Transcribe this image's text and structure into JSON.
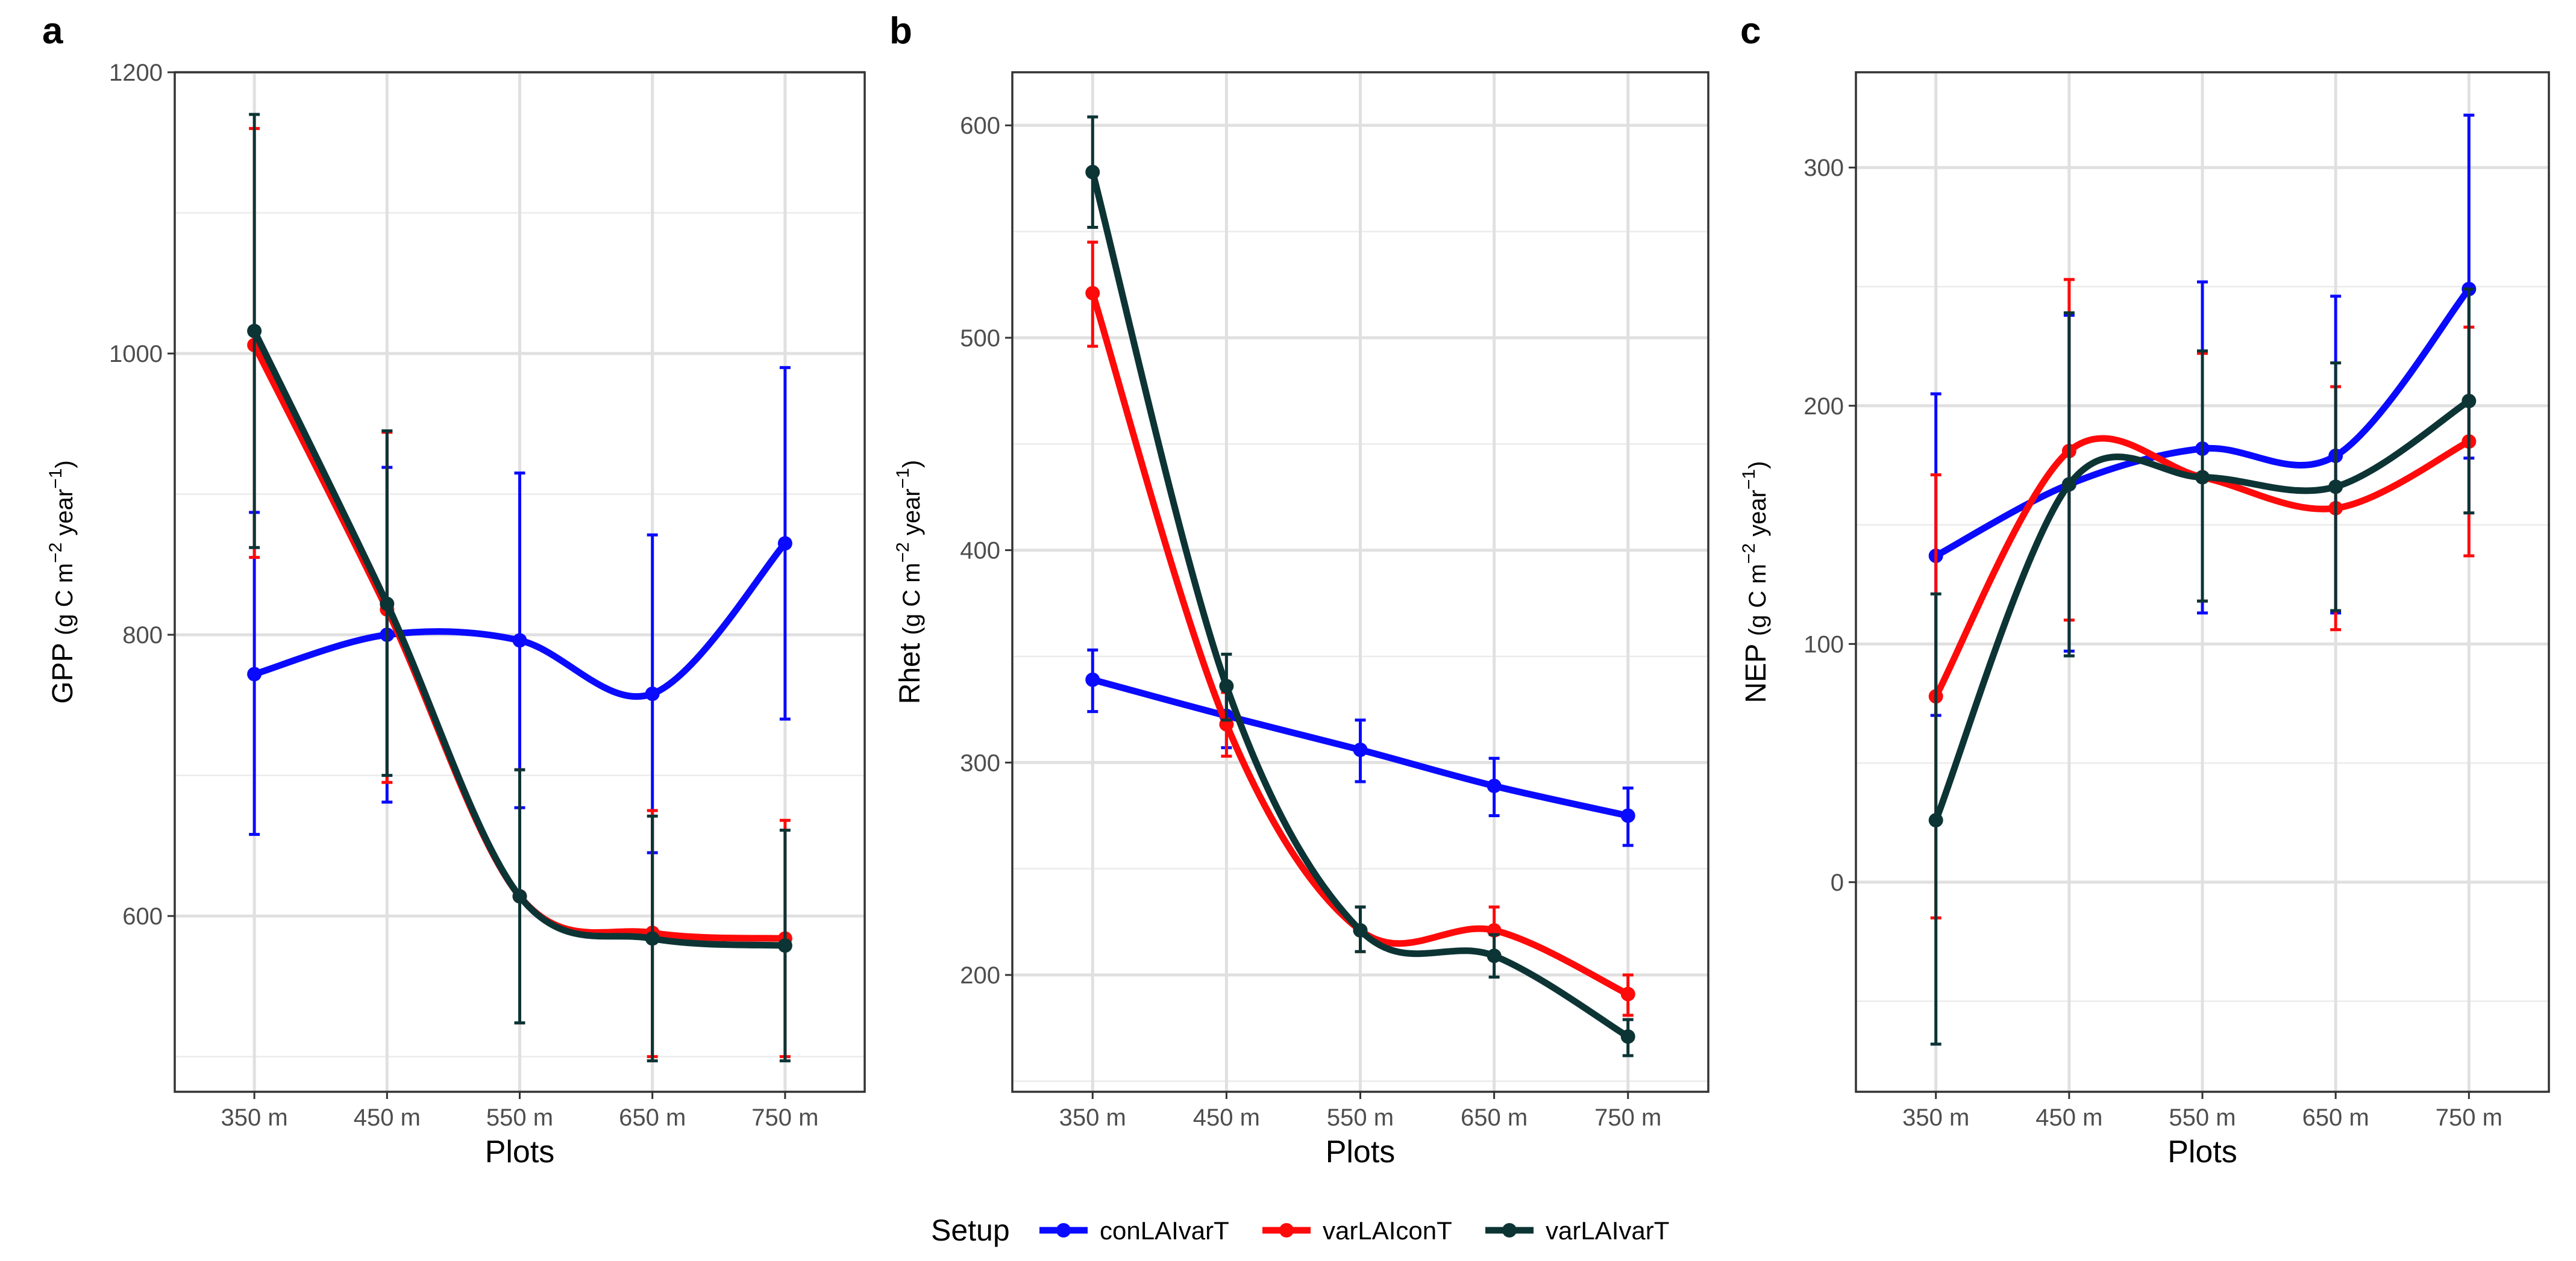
{
  "figure": {
    "x_axis_label": "Plots",
    "legend_title": "Setup"
  },
  "series_styles": [
    {
      "name": "conLAIvarT",
      "color": "#0a0aff"
    },
    {
      "name": "varLAIconT",
      "color": "#ff0a0a"
    },
    {
      "name": "varLAIvarT",
      "color": "#0d3435"
    }
  ],
  "chart_data": [
    {
      "type": "line",
      "panel_label": "a",
      "y_label_main": "GPP",
      "y_unit_prefix": "(g C m",
      "y_unit_exp1": "−2",
      "y_unit_mid": " year",
      "y_unit_exp2": "−1",
      "y_unit_suffix": ")",
      "categories": [
        "350 m",
        "450 m",
        "550 m",
        "650 m",
        "750 m"
      ],
      "ylim": [
        475,
        1200
      ],
      "yticks": [
        600,
        800,
        1000,
        1200
      ],
      "yminor": [
        500,
        700,
        900,
        1100
      ],
      "series": [
        {
          "name": "conLAIvarT",
          "values": [
            772,
            800,
            796,
            758,
            865
          ],
          "err_low": [
            658,
            681,
            677,
            645,
            740
          ],
          "err_high": [
            887,
            919,
            915,
            871,
            990
          ]
        },
        {
          "name": "varLAIconT",
          "values": [
            1006,
            818,
            614,
            588,
            584
          ],
          "err_low": [
            855,
            695,
            524,
            500,
            500
          ],
          "err_high": [
            1160,
            944,
            704,
            675,
            668
          ]
        },
        {
          "name": "varLAIvarT",
          "values": [
            1016,
            822,
            614,
            584,
            579
          ],
          "err_low": [
            862,
            700,
            524,
            497,
            497
          ],
          "err_high": [
            1170,
            945,
            704,
            671,
            661
          ]
        }
      ]
    },
    {
      "type": "line",
      "panel_label": "b",
      "y_label_main": "Rhet",
      "y_unit_prefix": "(g C m",
      "y_unit_exp1": "−2",
      "y_unit_mid": " year",
      "y_unit_exp2": "−1",
      "y_unit_suffix": ")",
      "categories": [
        "350 m",
        "450 m",
        "550 m",
        "650 m",
        "750 m"
      ],
      "ylim": [
        145,
        625
      ],
      "yticks": [
        200,
        300,
        400,
        500,
        600
      ],
      "yminor": [
        150,
        250,
        350,
        450,
        550
      ],
      "series": [
        {
          "name": "conLAIvarT",
          "values": [
            339,
            322,
            306,
            289,
            275
          ],
          "err_low": [
            324,
            307,
            291,
            275,
            261
          ],
          "err_high": [
            353,
            337,
            320,
            302,
            288
          ]
        },
        {
          "name": "varLAIconT",
          "values": [
            521,
            318,
            221,
            221,
            191
          ],
          "err_low": [
            496,
            303,
            211,
            210,
            181
          ],
          "err_high": [
            545,
            333,
            232,
            232,
            200
          ]
        },
        {
          "name": "varLAIvarT",
          "values": [
            578,
            336,
            221,
            209,
            171
          ],
          "err_low": [
            552,
            320,
            211,
            199,
            162
          ],
          "err_high": [
            604,
            351,
            232,
            219,
            179
          ]
        }
      ]
    },
    {
      "type": "line",
      "panel_label": "c",
      "y_label_main": "NEP",
      "y_unit_prefix": "(g C m",
      "y_unit_exp1": "−2",
      "y_unit_mid": " year",
      "y_unit_exp2": "−1",
      "y_unit_suffix": ")",
      "categories": [
        "350 m",
        "450 m",
        "550 m",
        "650 m",
        "750 m"
      ],
      "ylim": [
        -88,
        340
      ],
      "yticks": [
        0,
        100,
        200,
        300
      ],
      "yminor": [
        -50,
        50,
        150,
        250
      ],
      "series": [
        {
          "name": "conLAIvarT",
          "values": [
            137,
            167,
            182,
            179,
            249
          ],
          "err_low": [
            70,
            97,
            113,
            113,
            178
          ],
          "err_high": [
            205,
            238,
            252,
            246,
            322
          ]
        },
        {
          "name": "varLAIconT",
          "values": [
            78,
            181,
            170,
            157,
            185
          ],
          "err_low": [
            -15,
            110,
            118,
            106,
            137
          ],
          "err_high": [
            171,
            253,
            222,
            208,
            233
          ]
        },
        {
          "name": "varLAIvarT",
          "values": [
            26,
            167,
            170,
            166,
            202
          ],
          "err_low": [
            -68,
            95,
            118,
            114,
            155
          ],
          "err_high": [
            121,
            239,
            223,
            218,
            249
          ]
        }
      ]
    }
  ]
}
